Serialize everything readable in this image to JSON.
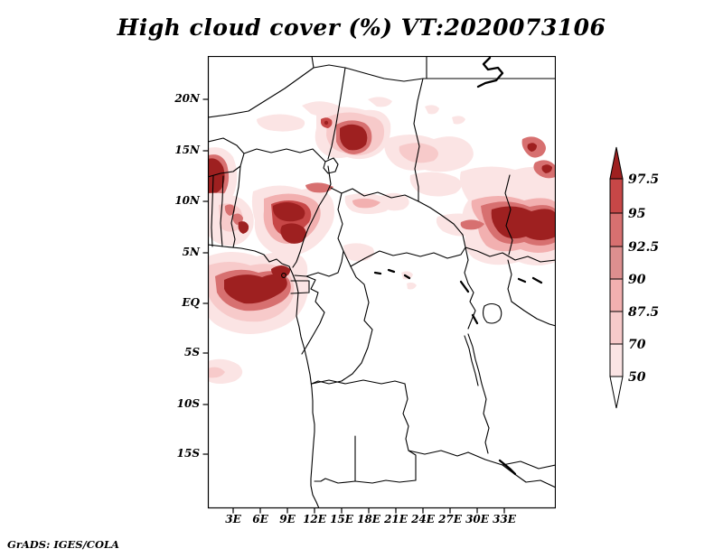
{
  "title": "High cloud cover (%) VT:2020073106",
  "attribution": "GrADS: IGES/COLA",
  "map": {
    "lat_ticks": [
      "20N",
      "15N",
      "10N",
      "5N",
      "EQ",
      "5S",
      "10S",
      "15S"
    ],
    "lon_ticks": [
      "3E",
      "6E",
      "9E",
      "12E",
      "15E",
      "18E",
      "21E",
      "24E",
      "27E",
      "30E",
      "33E"
    ]
  },
  "colorbar": {
    "labels": [
      "97.5",
      "95",
      "92.5",
      "90",
      "87.5",
      "70",
      "50"
    ],
    "colors_top_to_bottom": [
      "#9e2020",
      "#c74747",
      "#d77070",
      "#dd8f8f",
      "#f2b0b0",
      "#f7caca",
      "#fbe4e4",
      "#ffffff"
    ]
  },
  "chart_data": {
    "type": "filled_contour_map",
    "title": "High cloud cover (%) VT:2020073106",
    "variable": "High cloud cover",
    "units": "%",
    "valid_time_label": "VT:2020073106",
    "projection": "lat/lon, central Africa",
    "lon_axis": {
      "ticks": [
        "3E",
        "6E",
        "9E",
        "12E",
        "15E",
        "18E",
        "21E",
        "24E",
        "27E",
        "30E",
        "33E"
      ],
      "range_deg_east": [
        0.5,
        38.5
      ]
    },
    "lat_axis": {
      "ticks": [
        "20N",
        "15N",
        "10N",
        "5N",
        "EQ",
        "5S",
        "10S",
        "15S"
      ],
      "range_deg_north": [
        -20.5,
        24.3
      ]
    },
    "contour_levels_percent": [
      50,
      70,
      87.5,
      90,
      92.5,
      95,
      97.5
    ],
    "shading": [
      {
        "range": "> 97.5",
        "color": "#9e2020"
      },
      {
        "range": "95 - 97.5",
        "color": "#c74747"
      },
      {
        "range": "92.5 - 95",
        "color": "#d77070"
      },
      {
        "range": "90 - 92.5",
        "color": "#dd8f8f"
      },
      {
        "range": "87.5 - 90",
        "color": "#f2b0b0"
      },
      {
        "range": "70 - 87.5",
        "color": "#f7caca"
      },
      {
        "range": "50 - 70",
        "color": "#fbe4e4"
      },
      {
        "range": "< 50",
        "color": "#ffffff"
      }
    ],
    "max_cover_regions": [
      {
        "location": "southern Chad ~16-18E / 15-17N",
        "value_percent": ">97.5"
      },
      {
        "location": "west map edge ~0-2E / 11-14N",
        "value_percent": ">97.5"
      },
      {
        "location": "central Nigeria ~7-11E / 6-10N",
        "value_percent": ">97.5"
      },
      {
        "location": "Gulf of Guinea / Gabon coast ~2-9E / 3N-1S",
        "value_percent": ">97.5"
      },
      {
        "location": "Cameroon coast ~8-10E / 3-4N",
        "value_percent": ">97.5"
      },
      {
        "location": "western Ethiopia to map edge ~32-38E / 6-10N",
        "value_percent": ">97.5"
      },
      {
        "location": "central Sudan belt ~20-30E / 10-15N",
        "value_percent": "50-90"
      },
      {
        "location": "south Atlantic streak ~0-4E / 5-7S",
        "value_percent": "50-87.5"
      }
    ],
    "grid": false,
    "legend_position": "right vertical color bar with arrow caps"
  }
}
